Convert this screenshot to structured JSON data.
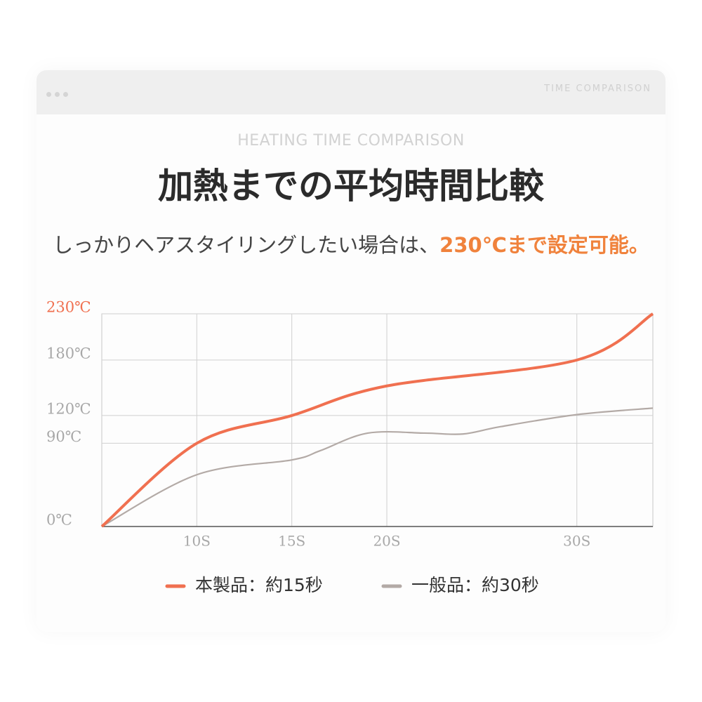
{
  "chart_data": {
    "type": "line",
    "window_label": "TIME COMPARISON",
    "subtitle": "HEATING TIME COMPARISON",
    "title": "加熱までの平均時間比較",
    "description": "しっかりヘアスタイリングしたい場合は、",
    "highlight": "230℃まで設定可能。",
    "xlim": [
      5,
      34
    ],
    "xticks": [
      {
        "value": 10,
        "label": "10S"
      },
      {
        "value": 15,
        "label": "15S"
      },
      {
        "value": 20,
        "label": "20S"
      },
      {
        "value": 30,
        "label": "30S"
      }
    ],
    "ylim": [
      0,
      230
    ],
    "yticks": [
      {
        "value": 0,
        "label": "0℃"
      },
      {
        "value": 90,
        "label": "90℃"
      },
      {
        "value": 120,
        "label": "120℃"
      },
      {
        "value": 180,
        "label": "180℃"
      },
      {
        "value": 230,
        "label": "230℃"
      }
    ],
    "grid": true,
    "series": [
      {
        "name": "本製品：約15秒",
        "color": "#f07050",
        "x": [
          5,
          10,
          15,
          20,
          30,
          34
        ],
        "values": [
          0,
          90,
          120,
          152,
          180,
          230
        ]
      },
      {
        "name": "一般品：約30秒",
        "color": "#b3aaa6",
        "x": [
          5,
          10,
          15,
          16.5,
          19,
          22,
          24,
          26,
          30,
          34
        ],
        "values": [
          0,
          56,
          72,
          82,
          101,
          101,
          100,
          108,
          121,
          128
        ]
      }
    ]
  }
}
